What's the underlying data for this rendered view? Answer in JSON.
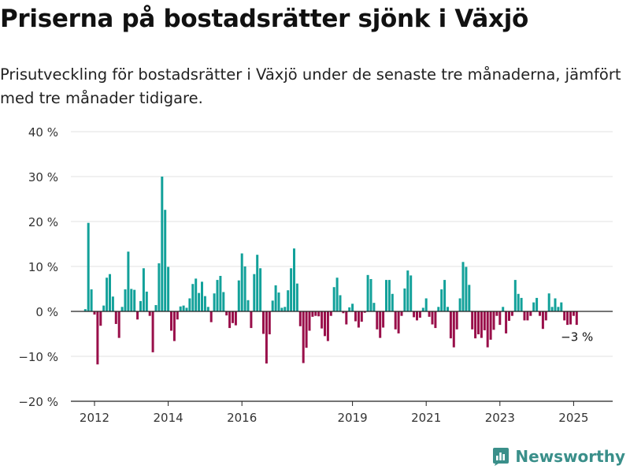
{
  "title": "Priserna på bostadsrätter sjönk i Växjö",
  "subtitle": "Prisutveckling för bostadsrätter i Växjö under de senaste tre månaderna, jämfört med tre månader tidigare.",
  "brand": "Newsworthy",
  "colors": {
    "positive": "#12a19a",
    "negative": "#990f4a",
    "grid": "#e2e2e2",
    "axis": "#222222",
    "brand": "#3a8f8a"
  },
  "chart_data": {
    "type": "bar",
    "x_start": "2011-10",
    "x_step": "month",
    "ylim": [
      -20,
      40
    ],
    "y_ticks": [
      40,
      30,
      20,
      10,
      0,
      -10,
      -20
    ],
    "y_tick_labels": [
      "40 %",
      "30 %",
      "20 %",
      "10 %",
      "0 %",
      "−10 %",
      "−20 %"
    ],
    "x_ticks": [
      2012,
      2014,
      2016,
      2019,
      2021,
      2023,
      2025
    ],
    "annotation": "−3 %",
    "values": [
      0.5,
      19.7,
      4.9,
      -0.7,
      -11.8,
      -3.2,
      1.3,
      7.5,
      8.3,
      3.3,
      -2.8,
      -5.9,
      1.0,
      4.9,
      13.3,
      5.0,
      4.8,
      -1.8,
      2.3,
      9.6,
      4.4,
      -1.0,
      -9.1,
      1.4,
      10.7,
      30.0,
      22.6,
      9.9,
      -4.3,
      -6.6,
      -1.8,
      1.1,
      1.3,
      0.8,
      2.9,
      6.1,
      7.3,
      4.1,
      6.6,
      3.4,
      1.0,
      -2.4,
      4.0,
      7.0,
      7.9,
      4.3,
      -0.9,
      -3.7,
      -2.6,
      -3.1,
      6.9,
      12.9,
      10.0,
      2.5,
      -3.7,
      8.3,
      12.6,
      9.6,
      -5.0,
      -11.6,
      -5.1,
      2.4,
      5.8,
      4.2,
      0.8,
      1.0,
      4.7,
      9.6,
      14.0,
      6.2,
      -3.3,
      -11.5,
      -8.1,
      -4.3,
      -1.2,
      -1.0,
      -1.1,
      -3.8,
      -5.5,
      -6.6,
      -1.0,
      5.4,
      7.5,
      3.6,
      -0.4,
      -2.9,
      0.9,
      1.7,
      -2.2,
      -3.6,
      -2.3,
      -0.3,
      8.1,
      7.2,
      1.9,
      -4.0,
      -5.9,
      -3.6,
      7.0,
      7.0,
      3.9,
      -4.0,
      -4.9,
      -1.0,
      5.1,
      9.1,
      8.0,
      -1.3,
      -2.0,
      -1.4,
      0.8,
      2.9,
      -1.2,
      -2.9,
      -3.7,
      1.0,
      4.9,
      7.0,
      1.0,
      -6.0,
      -8.0,
      -4.0,
      2.9,
      11.0,
      9.9,
      5.9,
      -4.0,
      -6.0,
      -5.1,
      -5.9,
      -4.2,
      -8.0,
      -6.3,
      -4.1,
      -1.0,
      -3.0,
      1.0,
      -4.9,
      -2.1,
      -1.0,
      7.0,
      3.9,
      3.0,
      -2.0,
      -2.0,
      -1.0,
      2.0,
      3.0,
      -1.0,
      -3.9,
      -2.0,
      4.0,
      1.0,
      2.9,
      1.0,
      2.0,
      -2.0,
      -3.0,
      -2.9,
      -1.0,
      -3.0
    ]
  }
}
